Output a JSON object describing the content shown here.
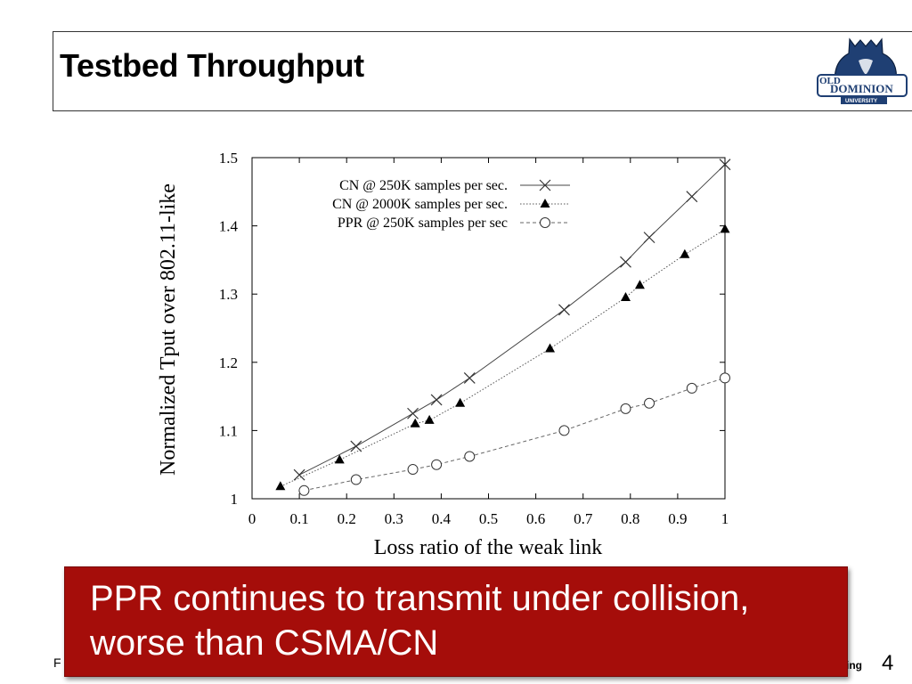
{
  "slide": {
    "title": "Testbed Throughput",
    "logo_text_1": "OLD",
    "logo_text_2": "DOMINION",
    "logo_text_3": "UNIVERSITY",
    "footer_left": "F",
    "footer_right": "ing",
    "page_number": "4",
    "callout_text": "PPR continues to transmit under collision, worse than CSMA/CN"
  },
  "colors": {
    "callout_bg": "#a50d0a",
    "logo_blue": "#1f3f73"
  },
  "chart_data": {
    "type": "line",
    "xlabel": "Loss ratio of the weak link",
    "ylabel": "Normalized Tput over 802.11-like",
    "xlim": [
      0,
      1
    ],
    "ylim": [
      1,
      1.5
    ],
    "xticks": [
      "0",
      "0.1",
      "0.2",
      "0.3",
      "0.4",
      "0.5",
      "0.6",
      "0.7",
      "0.8",
      "0.9",
      "1"
    ],
    "yticks": [
      "1",
      "1.1",
      "1.2",
      "1.3",
      "1.4",
      "1.5"
    ],
    "grid": false,
    "legend_position": "top-left",
    "series": [
      {
        "name": "CN @ 250K samples per sec.",
        "line": "solid",
        "marker": "x",
        "x": [
          0.1,
          0.22,
          0.34,
          0.39,
          0.46,
          0.66,
          0.79,
          0.84,
          0.93,
          1.0
        ],
        "y": [
          1.035,
          1.077,
          1.125,
          1.145,
          1.177,
          1.277,
          1.347,
          1.383,
          1.443,
          1.49
        ]
      },
      {
        "name": "CN @ 2000K samples per sec.",
        "line": "dotted",
        "marker": "triangle",
        "x": [
          0.06,
          0.185,
          0.345,
          0.375,
          0.44,
          0.63,
          0.79,
          0.82,
          0.915,
          1.0
        ],
        "y": [
          1.018,
          1.057,
          1.11,
          1.115,
          1.14,
          1.22,
          1.295,
          1.313,
          1.358,
          1.395
        ]
      },
      {
        "name": "PPR @ 250K samples per sec",
        "line": "dashed",
        "marker": "circle",
        "x": [
          0.11,
          0.22,
          0.34,
          0.39,
          0.46,
          0.66,
          0.79,
          0.84,
          0.93,
          1.0
        ],
        "y": [
          1.012,
          1.028,
          1.043,
          1.05,
          1.062,
          1.1,
          1.132,
          1.14,
          1.162,
          1.177
        ]
      }
    ]
  }
}
